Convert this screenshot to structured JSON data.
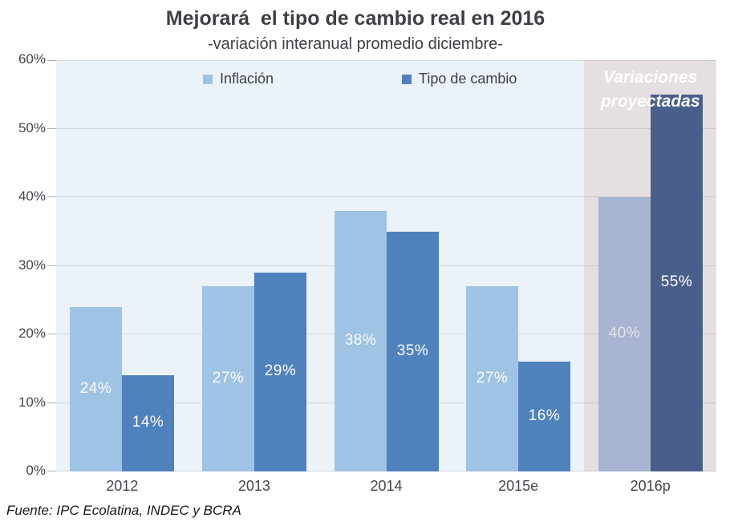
{
  "source_note": "Fuente: IPC Ecolatina, INDEC y BCRA",
  "chart_data": {
    "type": "bar",
    "title": "Mejorará  el tipo de cambio real en 2016",
    "subtitle": "-variación interanual promedio diciembre-",
    "categories": [
      "2012",
      "2013",
      "2014",
      "2015e",
      "2016p"
    ],
    "series": [
      {
        "name": "Inflación",
        "values": [
          24,
          27,
          38,
          27,
          40
        ],
        "labels": [
          "24%",
          "27%",
          "38%",
          "27%",
          "40%"
        ],
        "color": "#9EC3E5",
        "projected_color": "#A7B4D2",
        "projected_label_color": "#E9E3E8"
      },
      {
        "name": "Tipo de cambio",
        "values": [
          14,
          29,
          35,
          16,
          55
        ],
        "labels": [
          "14%",
          "29%",
          "35%",
          "16%",
          "55%"
        ],
        "color": "#4F81BD",
        "projected_color": "#4A5E8B",
        "projected_label_color": "#FFFFFF"
      }
    ],
    "y_ticks": [
      "0%",
      "10%",
      "20%",
      "30%",
      "40%",
      "50%",
      "60%"
    ],
    "ylim": [
      0,
      60
    ],
    "grid": true,
    "legend_position": "top-inside",
    "projected_category": "2016p",
    "annotation": {
      "text": "Variaciones proyectadas",
      "lines": [
        "Variaciones",
        "proyectadas"
      ]
    },
    "plot_bg": "#EBF2F8",
    "projected_bg": "#E6DFE2"
  }
}
